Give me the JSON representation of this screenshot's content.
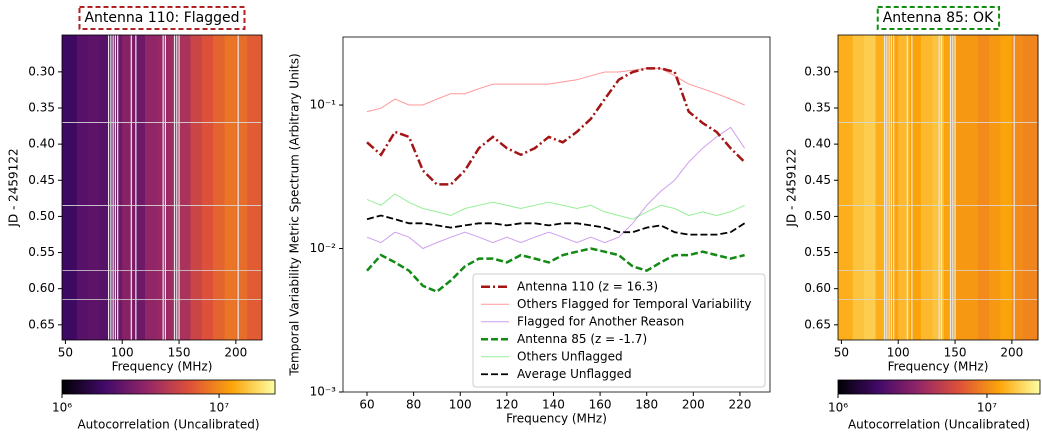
{
  "chart_data": [
    {
      "type": "heatmap",
      "title": "Antenna 110: Flagged",
      "title_box_color": "#b22222",
      "xlabel": "Frequency (MHz)",
      "ylabel": "JD - 2459122",
      "colormap": "inferno",
      "x_bins": [
        47,
        60,
        70,
        80,
        90,
        100,
        110,
        120,
        130,
        140,
        150,
        160,
        170,
        180,
        190,
        200,
        210,
        223
      ],
      "values": [
        1800000,
        2200000,
        2300000,
        2200000,
        2600000,
        3200000,
        2600000,
        3400000,
        3600000,
        3800000,
        4200000,
        5500000,
        6500000,
        7500000,
        8500000,
        8000000,
        7000000
      ],
      "flagged_frequencies": [
        88,
        90,
        92,
        94,
        96,
        108,
        112,
        136,
        138,
        146,
        148,
        150,
        202
      ],
      "flagged_times": [
        0.37,
        0.485,
        0.575,
        0.615
      ],
      "xlim": [
        47,
        223
      ],
      "ylim": [
        0.671,
        0.249
      ],
      "xticks": [
        50,
        100,
        150,
        200
      ],
      "yticks": [
        {
          "value": 0.3,
          "label": "0.30"
        },
        0.35,
        {
          "value": 0.4,
          "label": "0.40"
        },
        0.45,
        {
          "value": 0.5,
          "label": "0.50"
        },
        0.55,
        {
          "value": 0.6,
          "label": "0.60"
        },
        0.65
      ],
      "colorbar": {
        "label": "Autocorrelation (Uncalibrated)",
        "lim": [
          1000000,
          22700000
        ],
        "log": true,
        "ticks": [
          {
            "value": 1000000,
            "label": "10⁶"
          },
          {
            "value": 10000000,
            "label": "10⁷"
          }
        ]
      }
    },
    {
      "type": "line",
      "xlabel": "Frequency (MHz)",
      "ylabel": "Temporal Variability Metric Spectrum (Arbitrary Units)",
      "log_y": true,
      "legend": "lower right",
      "x": [
        60,
        66,
        72,
        78,
        84,
        90,
        96,
        102,
        108,
        114,
        120,
        126,
        132,
        138,
        144,
        150,
        156,
        162,
        168,
        174,
        180,
        186,
        192,
        198,
        204,
        210,
        216,
        222
      ],
      "xlim": [
        49.7,
        232.9
      ],
      "ylim": [
        0.001,
        0.298
      ],
      "xticks": [
        60,
        80,
        100,
        120,
        140,
        160,
        180,
        200,
        220
      ],
      "yticks": [
        {
          "value": 0.001,
          "label": "10⁻³"
        },
        {
          "value": 0.01,
          "label": "10⁻²"
        },
        {
          "value": 0.1,
          "label": "10⁻¹"
        }
      ],
      "series": [
        {
          "name": "Antenna 110 (z = 16.3)",
          "color": "#a31515",
          "dash": "dashdot",
          "width": 2.5,
          "opacity": 1,
          "values": [
            0.055,
            0.045,
            0.065,
            0.06,
            0.035,
            0.028,
            0.028,
            0.035,
            0.05,
            0.06,
            0.05,
            0.045,
            0.05,
            0.06,
            0.055,
            0.065,
            0.08,
            0.11,
            0.15,
            0.17,
            0.18,
            0.18,
            0.17,
            0.09,
            0.075,
            0.065,
            0.05,
            0.04
          ]
        },
        {
          "name": "Others Flagged for Temporal Variability",
          "color": "#ff3030",
          "dash": "solid",
          "width": 1,
          "opacity": 0.5,
          "values": [
            0.09,
            0.095,
            0.11,
            0.1,
            0.1,
            0.11,
            0.12,
            0.12,
            0.13,
            0.14,
            0.14,
            0.14,
            0.14,
            0.14,
            0.145,
            0.15,
            0.16,
            0.17,
            0.17,
            0.175,
            0.18,
            0.18,
            0.16,
            0.14,
            0.13,
            0.12,
            0.11,
            0.1
          ]
        },
        {
          "name": "Flagged for Another Reason",
          "color": "#a040e0",
          "dash": "solid",
          "width": 1,
          "opacity": 0.5,
          "values": [
            0.012,
            0.011,
            0.013,
            0.012,
            0.01,
            0.011,
            0.012,
            0.013,
            0.012,
            0.011,
            0.012,
            0.011,
            0.012,
            0.013,
            0.012,
            0.011,
            0.012,
            0.011,
            0.012,
            0.015,
            0.02,
            0.025,
            0.03,
            0.04,
            0.05,
            0.06,
            0.07,
            0.05
          ]
        },
        {
          "name": "Antenna 85 (z = -1.7)",
          "color": "#138a13",
          "dash": "dashed",
          "width": 2.5,
          "opacity": 1,
          "values": [
            0.007,
            0.009,
            0.008,
            0.007,
            0.0055,
            0.005,
            0.006,
            0.0075,
            0.0085,
            0.0085,
            0.008,
            0.009,
            0.0085,
            0.008,
            0.009,
            0.0095,
            0.01,
            0.0095,
            0.009,
            0.0075,
            0.007,
            0.008,
            0.009,
            0.009,
            0.0095,
            0.009,
            0.0085,
            0.009
          ]
        },
        {
          "name": "Others Unflagged",
          "color": "#30e030",
          "dash": "solid",
          "width": 1,
          "opacity": 0.5,
          "values": [
            0.022,
            0.02,
            0.024,
            0.021,
            0.019,
            0.018,
            0.017,
            0.019,
            0.02,
            0.021,
            0.02,
            0.019,
            0.02,
            0.021,
            0.02,
            0.019,
            0.02,
            0.018,
            0.017,
            0.016,
            0.018,
            0.02,
            0.019,
            0.017,
            0.018,
            0.017,
            0.018,
            0.02
          ]
        },
        {
          "name": "Average Unflagged",
          "color": "#000000",
          "dash": "dashed",
          "width": 1.8,
          "opacity": 1,
          "values": [
            0.016,
            0.017,
            0.016,
            0.015,
            0.015,
            0.0145,
            0.014,
            0.0145,
            0.015,
            0.015,
            0.0145,
            0.015,
            0.015,
            0.0145,
            0.015,
            0.015,
            0.0145,
            0.014,
            0.013,
            0.013,
            0.014,
            0.0145,
            0.013,
            0.0125,
            0.0125,
            0.0125,
            0.013,
            0.015
          ]
        }
      ]
    },
    {
      "type": "heatmap",
      "title": "Antenna 85: OK",
      "title_box_color": "#138a13",
      "xlabel": "Frequency (MHz)",
      "ylabel": "JD - 2459122",
      "colormap": "inferno",
      "x_bins": [
        47,
        60,
        70,
        80,
        90,
        100,
        110,
        120,
        130,
        140,
        150,
        160,
        170,
        180,
        190,
        200,
        210,
        223
      ],
      "values": [
        13000000,
        15000000,
        16000000,
        13000000,
        12000000,
        14000000,
        12000000,
        14000000,
        15000000,
        12000000,
        11000000,
        11000000,
        10000000,
        11000000,
        12000000,
        10000000,
        9500000
      ],
      "flagged_frequencies": [
        88,
        90,
        92,
        94,
        96,
        108,
        112,
        136,
        138,
        146,
        148,
        150,
        202
      ],
      "flagged_times": [
        0.37,
        0.485,
        0.575,
        0.615
      ],
      "xlim": [
        47,
        223
      ],
      "ylim": [
        0.671,
        0.249
      ],
      "xticks": [
        50,
        100,
        150,
        200
      ],
      "yticks": [
        {
          "value": 0.3,
          "label": "0.30"
        },
        0.35,
        {
          "value": 0.4,
          "label": "0.40"
        },
        0.45,
        {
          "value": 0.5,
          "label": "0.50"
        },
        0.55,
        {
          "value": 0.6,
          "label": "0.60"
        },
        0.65
      ],
      "colorbar": {
        "label": "Autocorrelation (Uncalibrated)",
        "lim": [
          1000000,
          22700000
        ],
        "log": true,
        "ticks": [
          {
            "value": 1000000,
            "label": "10⁶"
          },
          {
            "value": 10000000,
            "label": "10⁷"
          }
        ]
      }
    }
  ]
}
